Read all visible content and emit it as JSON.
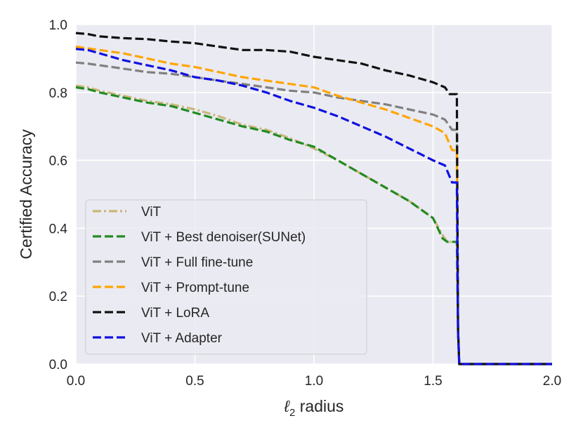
{
  "chart_data": {
    "type": "line",
    "title": "",
    "xlabel_italic": "ℓ",
    "xlabel_sub": "2",
    "xlabel_rest": " radius",
    "ylabel": "Certified Accuracy",
    "xlim": [
      0.0,
      2.0
    ],
    "ylim": [
      0.0,
      1.0
    ],
    "x_ticks": [
      "0.0",
      "0.5",
      "1.0",
      "1.5",
      "2.0"
    ],
    "x_tick_values": [
      0.0,
      0.5,
      1.0,
      1.5,
      2.0
    ],
    "y_ticks": [
      "0.0",
      "0.2",
      "0.4",
      "0.6",
      "0.8",
      "1.0"
    ],
    "y_tick_values": [
      0.0,
      0.2,
      0.4,
      0.6,
      0.8,
      1.0
    ],
    "grid": true,
    "legend_position": "lower-left",
    "background_color": "#eaeaf2",
    "series": [
      {
        "name": "ViT",
        "color": "#c9b77a",
        "dash": "dashdot",
        "x": [
          0.0,
          0.05,
          0.1,
          0.2,
          0.3,
          0.4,
          0.5,
          0.6,
          0.7,
          0.8,
          0.9,
          1.0,
          1.1,
          1.2,
          1.3,
          1.4,
          1.5,
          1.54,
          1.56,
          1.6,
          1.605,
          1.61,
          2.0
        ],
        "y": [
          0.82,
          0.815,
          0.805,
          0.79,
          0.775,
          0.765,
          0.75,
          0.73,
          0.705,
          0.69,
          0.665,
          0.635,
          0.6,
          0.56,
          0.52,
          0.48,
          0.43,
          0.38,
          0.36,
          0.36,
          0.1,
          0.0,
          0.0
        ]
      },
      {
        "name": "ViT + Best denoiser(SUNet)",
        "color": "#228b22",
        "dash": "dash",
        "x": [
          0.0,
          0.05,
          0.1,
          0.2,
          0.3,
          0.4,
          0.5,
          0.6,
          0.7,
          0.8,
          0.9,
          1.0,
          1.1,
          1.2,
          1.3,
          1.4,
          1.5,
          1.54,
          1.56,
          1.6,
          1.605,
          1.61,
          2.0
        ],
        "y": [
          0.815,
          0.81,
          0.8,
          0.785,
          0.77,
          0.76,
          0.74,
          0.72,
          0.7,
          0.685,
          0.66,
          0.64,
          0.6,
          0.56,
          0.52,
          0.48,
          0.43,
          0.37,
          0.36,
          0.36,
          0.1,
          0.0,
          0.0
        ]
      },
      {
        "name": "ViT + Full fine-tune",
        "color": "#808080",
        "dash": "dash",
        "x": [
          0.0,
          0.05,
          0.1,
          0.2,
          0.3,
          0.4,
          0.5,
          0.6,
          0.7,
          0.8,
          0.9,
          1.0,
          1.1,
          1.2,
          1.3,
          1.4,
          1.5,
          1.55,
          1.58,
          1.6,
          1.605,
          1.61,
          2.0
        ],
        "y": [
          0.888,
          0.885,
          0.88,
          0.87,
          0.86,
          0.855,
          0.845,
          0.835,
          0.825,
          0.815,
          0.805,
          0.8,
          0.785,
          0.775,
          0.765,
          0.75,
          0.735,
          0.72,
          0.69,
          0.69,
          0.1,
          0.0,
          0.0
        ]
      },
      {
        "name": "ViT + Prompt-tune",
        "color": "#ffa500",
        "dash": "dash",
        "x": [
          0.0,
          0.05,
          0.1,
          0.2,
          0.3,
          0.4,
          0.5,
          0.6,
          0.7,
          0.8,
          0.9,
          1.0,
          1.1,
          1.2,
          1.3,
          1.4,
          1.5,
          1.55,
          1.58,
          1.6,
          1.605,
          1.61,
          2.0
        ],
        "y": [
          0.935,
          0.93,
          0.925,
          0.915,
          0.9,
          0.885,
          0.875,
          0.86,
          0.845,
          0.835,
          0.825,
          0.815,
          0.79,
          0.77,
          0.75,
          0.725,
          0.7,
          0.68,
          0.63,
          0.63,
          0.1,
          0.0,
          0.0
        ]
      },
      {
        "name": "ViT + LoRA",
        "color": "#111111",
        "dash": "dash",
        "x": [
          0.0,
          0.05,
          0.1,
          0.2,
          0.3,
          0.4,
          0.5,
          0.6,
          0.7,
          0.8,
          0.9,
          1.0,
          1.1,
          1.2,
          1.3,
          1.4,
          1.5,
          1.55,
          1.57,
          1.6,
          1.605,
          1.61,
          2.0
        ],
        "y": [
          0.975,
          0.972,
          0.965,
          0.96,
          0.957,
          0.95,
          0.945,
          0.935,
          0.925,
          0.925,
          0.92,
          0.905,
          0.895,
          0.885,
          0.865,
          0.85,
          0.83,
          0.815,
          0.795,
          0.795,
          0.1,
          0.0,
          0.0
        ]
      },
      {
        "name": "ViT + Adapter",
        "color": "#1010e0",
        "dash": "dash",
        "x": [
          0.0,
          0.05,
          0.1,
          0.2,
          0.3,
          0.4,
          0.5,
          0.6,
          0.7,
          0.8,
          0.9,
          1.0,
          1.1,
          1.2,
          1.3,
          1.4,
          1.5,
          1.55,
          1.58,
          1.6,
          1.605,
          1.61,
          2.0
        ],
        "y": [
          0.928,
          0.925,
          0.915,
          0.895,
          0.88,
          0.865,
          0.845,
          0.835,
          0.82,
          0.8,
          0.775,
          0.755,
          0.73,
          0.7,
          0.67,
          0.635,
          0.6,
          0.585,
          0.535,
          0.535,
          0.1,
          0.0,
          0.0
        ]
      }
    ]
  }
}
